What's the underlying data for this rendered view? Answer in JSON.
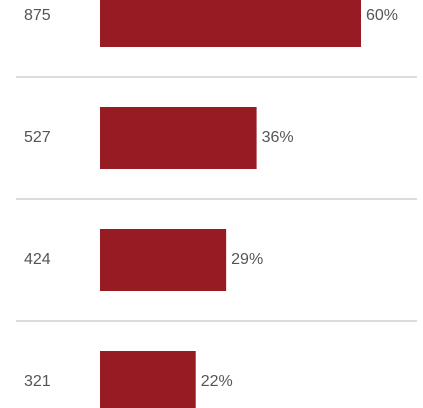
{
  "chart_data": {
    "type": "bar",
    "orientation": "horizontal",
    "categories": [
      "875",
      "527",
      "424",
      "321"
    ],
    "values": [
      60,
      36,
      29,
      22
    ],
    "value_labels": [
      "60%",
      "36%",
      "29%",
      "22%"
    ],
    "title": "",
    "xlabel": "",
    "ylabel": "",
    "xlim": [
      0,
      100
    ],
    "grid": false,
    "legend": "none",
    "colors": {
      "bar": "#961b22",
      "divider": "#d0d0d0",
      "text": "#555555"
    }
  }
}
